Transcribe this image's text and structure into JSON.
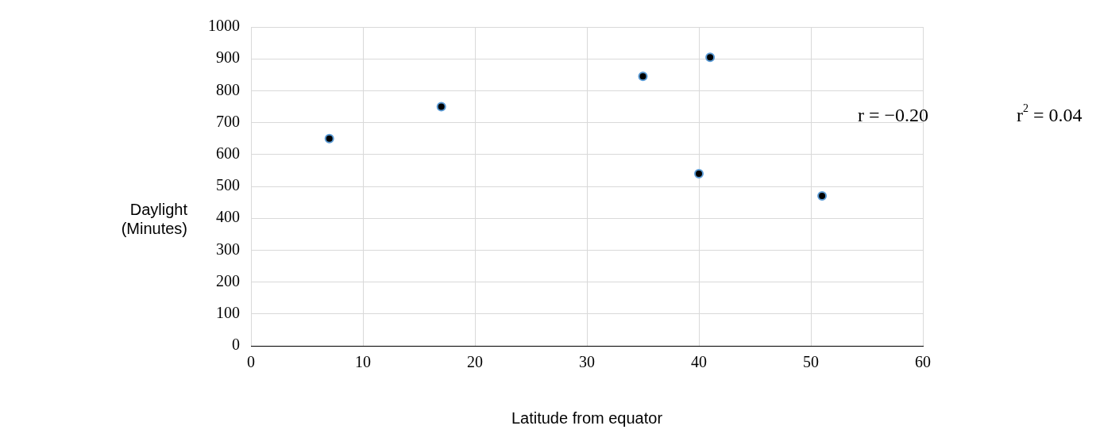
{
  "chart_data": {
    "type": "scatter",
    "xlabel": "Latitude from equator",
    "ylabel": "Daylight\n(Minutes)",
    "x": [
      7,
      17,
      35,
      41,
      40,
      51
    ],
    "values": [
      650,
      750,
      845,
      905,
      540,
      470
    ],
    "color": "#000000",
    "xlim": [
      0,
      60
    ],
    "xticks": [
      0,
      10,
      20,
      30,
      40,
      50,
      60
    ],
    "ylim": [
      0,
      1000
    ],
    "yticks": [
      0,
      100,
      200,
      300,
      400,
      500,
      600,
      700,
      800,
      900,
      1000
    ],
    "grid": true,
    "marker": "circle",
    "annotations": [
      "r = −0.20",
      "r$^{2}$ = 0.04"
    ]
  }
}
